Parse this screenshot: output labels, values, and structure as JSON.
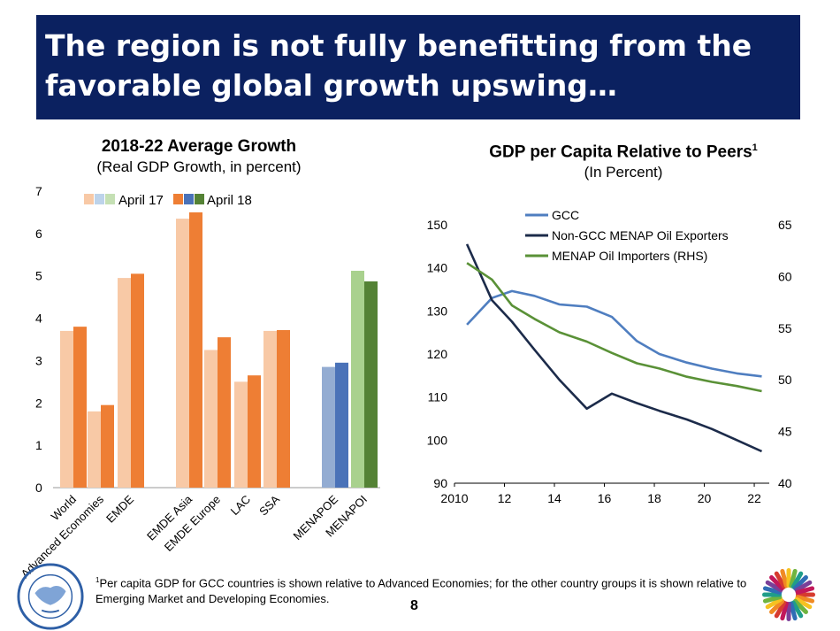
{
  "slide": {
    "title": "The region is not fully benefitting from the favorable global growth upswing…",
    "footnote_marker": "1",
    "footnote": "Per capita GDP for GCC countries is shown relative to Advanced Economies; for the other country groups it is shown relative to Emerging Market and Developing Economies.",
    "page_number": "8"
  },
  "chart_data": [
    {
      "type": "bar",
      "title": "2018-22 Average Growth",
      "subtitle": "(Real GDP Growth, in percent)",
      "ylim": [
        0,
        7
      ],
      "yticks": [
        0,
        1,
        2,
        3,
        4,
        5,
        6,
        7
      ],
      "legend": {
        "position": "top-left",
        "labels": [
          "April 17",
          "April 18"
        ]
      },
      "categories": [
        "World",
        "Advanced Economies",
        "EMDE",
        "EMDE Asia",
        "EMDE Europe",
        "LAC",
        "SSA",
        "MENAPOE",
        "MENAPOI"
      ],
      "series": [
        {
          "name": "April 17",
          "values": [
            3.7,
            1.8,
            4.95,
            6.35,
            3.25,
            2.5,
            3.7,
            2.85,
            5.12
          ]
        },
        {
          "name": "April 18",
          "values": [
            3.8,
            1.95,
            5.05,
            6.5,
            3.55,
            2.65,
            3.72,
            2.95,
            4.87
          ]
        }
      ],
      "colors": {
        "april17": "#f8c9a6",
        "april18": "#ee7e34",
        "april17_menapoe": "#93acd2",
        "april18_menapoe": "#4a72b8",
        "april17_menapoi": "#a9d18e",
        "april18_menapoi": "#548235",
        "legend_april17_swatches": [
          "#f8c9a6",
          "#bdd3ea",
          "#c5e0b4"
        ],
        "legend_april18_swatches": [
          "#ee7e34",
          "#4a72b8",
          "#548235"
        ]
      }
    },
    {
      "type": "line",
      "title": "GDP per Capita Relative to Peers",
      "title_superscript": "1",
      "subtitle": "(In Percent)",
      "x": [
        2010.5,
        2011.5,
        2012.3,
        2013.2,
        2014.2,
        2015.3,
        2016.3,
        2017.3,
        2018.2,
        2019.3,
        2020.3,
        2021.3,
        2022.3
      ],
      "xlim": [
        2010,
        22.6
      ],
      "xtick_labels": [
        "2010",
        "12",
        "14",
        "16",
        "18",
        "20",
        "22"
      ],
      "xticks": [
        2010,
        2012,
        2014,
        2016,
        2018,
        2020,
        2022
      ],
      "ylim": [
        90,
        150
      ],
      "yticks": [
        90,
        100,
        110,
        120,
        130,
        140,
        150
      ],
      "y2lim": [
        40,
        65
      ],
      "y2ticks": [
        40,
        45,
        50,
        55,
        60,
        65
      ],
      "legend": {
        "position": "top"
      },
      "series": [
        {
          "name": "GCC",
          "axis": "left",
          "color": "#4f7ec0",
          "points": [
            [
              2010.5,
              126.8
            ],
            [
              2011.5,
              133.0
            ],
            [
              2012.3,
              134.6
            ],
            [
              2013.2,
              133.5
            ],
            [
              2014.2,
              131.5
            ],
            [
              2015.3,
              131.0
            ],
            [
              2016.3,
              128.6
            ],
            [
              2017.3,
              123.0
            ],
            [
              2018.2,
              120.0
            ],
            [
              2019.3,
              118.0
            ],
            [
              2020.3,
              116.6
            ],
            [
              2021.3,
              115.5
            ],
            [
              2022.3,
              114.8
            ]
          ]
        },
        {
          "name": "Non-GCC MENAP Oil Exporters",
          "axis": "left",
          "color": "#1c2b4a",
          "points": [
            [
              2010.5,
              145.5
            ],
            [
              2011.5,
              132.5
            ],
            [
              2012.3,
              127.5
            ],
            [
              2013.2,
              121.0
            ],
            [
              2014.2,
              114.0
            ],
            [
              2015.3,
              107.3
            ],
            [
              2016.3,
              110.8
            ],
            [
              2017.3,
              108.6
            ],
            [
              2018.2,
              106.8
            ],
            [
              2019.3,
              104.8
            ],
            [
              2020.3,
              102.6
            ],
            [
              2021.3,
              100.0
            ],
            [
              2022.3,
              97.4
            ]
          ]
        },
        {
          "name": "MENAP Oil Importers (RHS)",
          "axis": "right",
          "color": "#5a9137",
          "points": [
            [
              2010.5,
              61.3
            ],
            [
              2011.5,
              59.7
            ],
            [
              2012.3,
              57.2
            ],
            [
              2013.2,
              55.9
            ],
            [
              2014.2,
              54.6
            ],
            [
              2015.3,
              53.7
            ],
            [
              2016.3,
              52.6
            ],
            [
              2017.3,
              51.6
            ],
            [
              2018.2,
              51.1
            ],
            [
              2019.3,
              50.3
            ],
            [
              2020.3,
              49.8
            ],
            [
              2021.3,
              49.4
            ],
            [
              2022.3,
              48.9
            ]
          ]
        }
      ]
    }
  ]
}
